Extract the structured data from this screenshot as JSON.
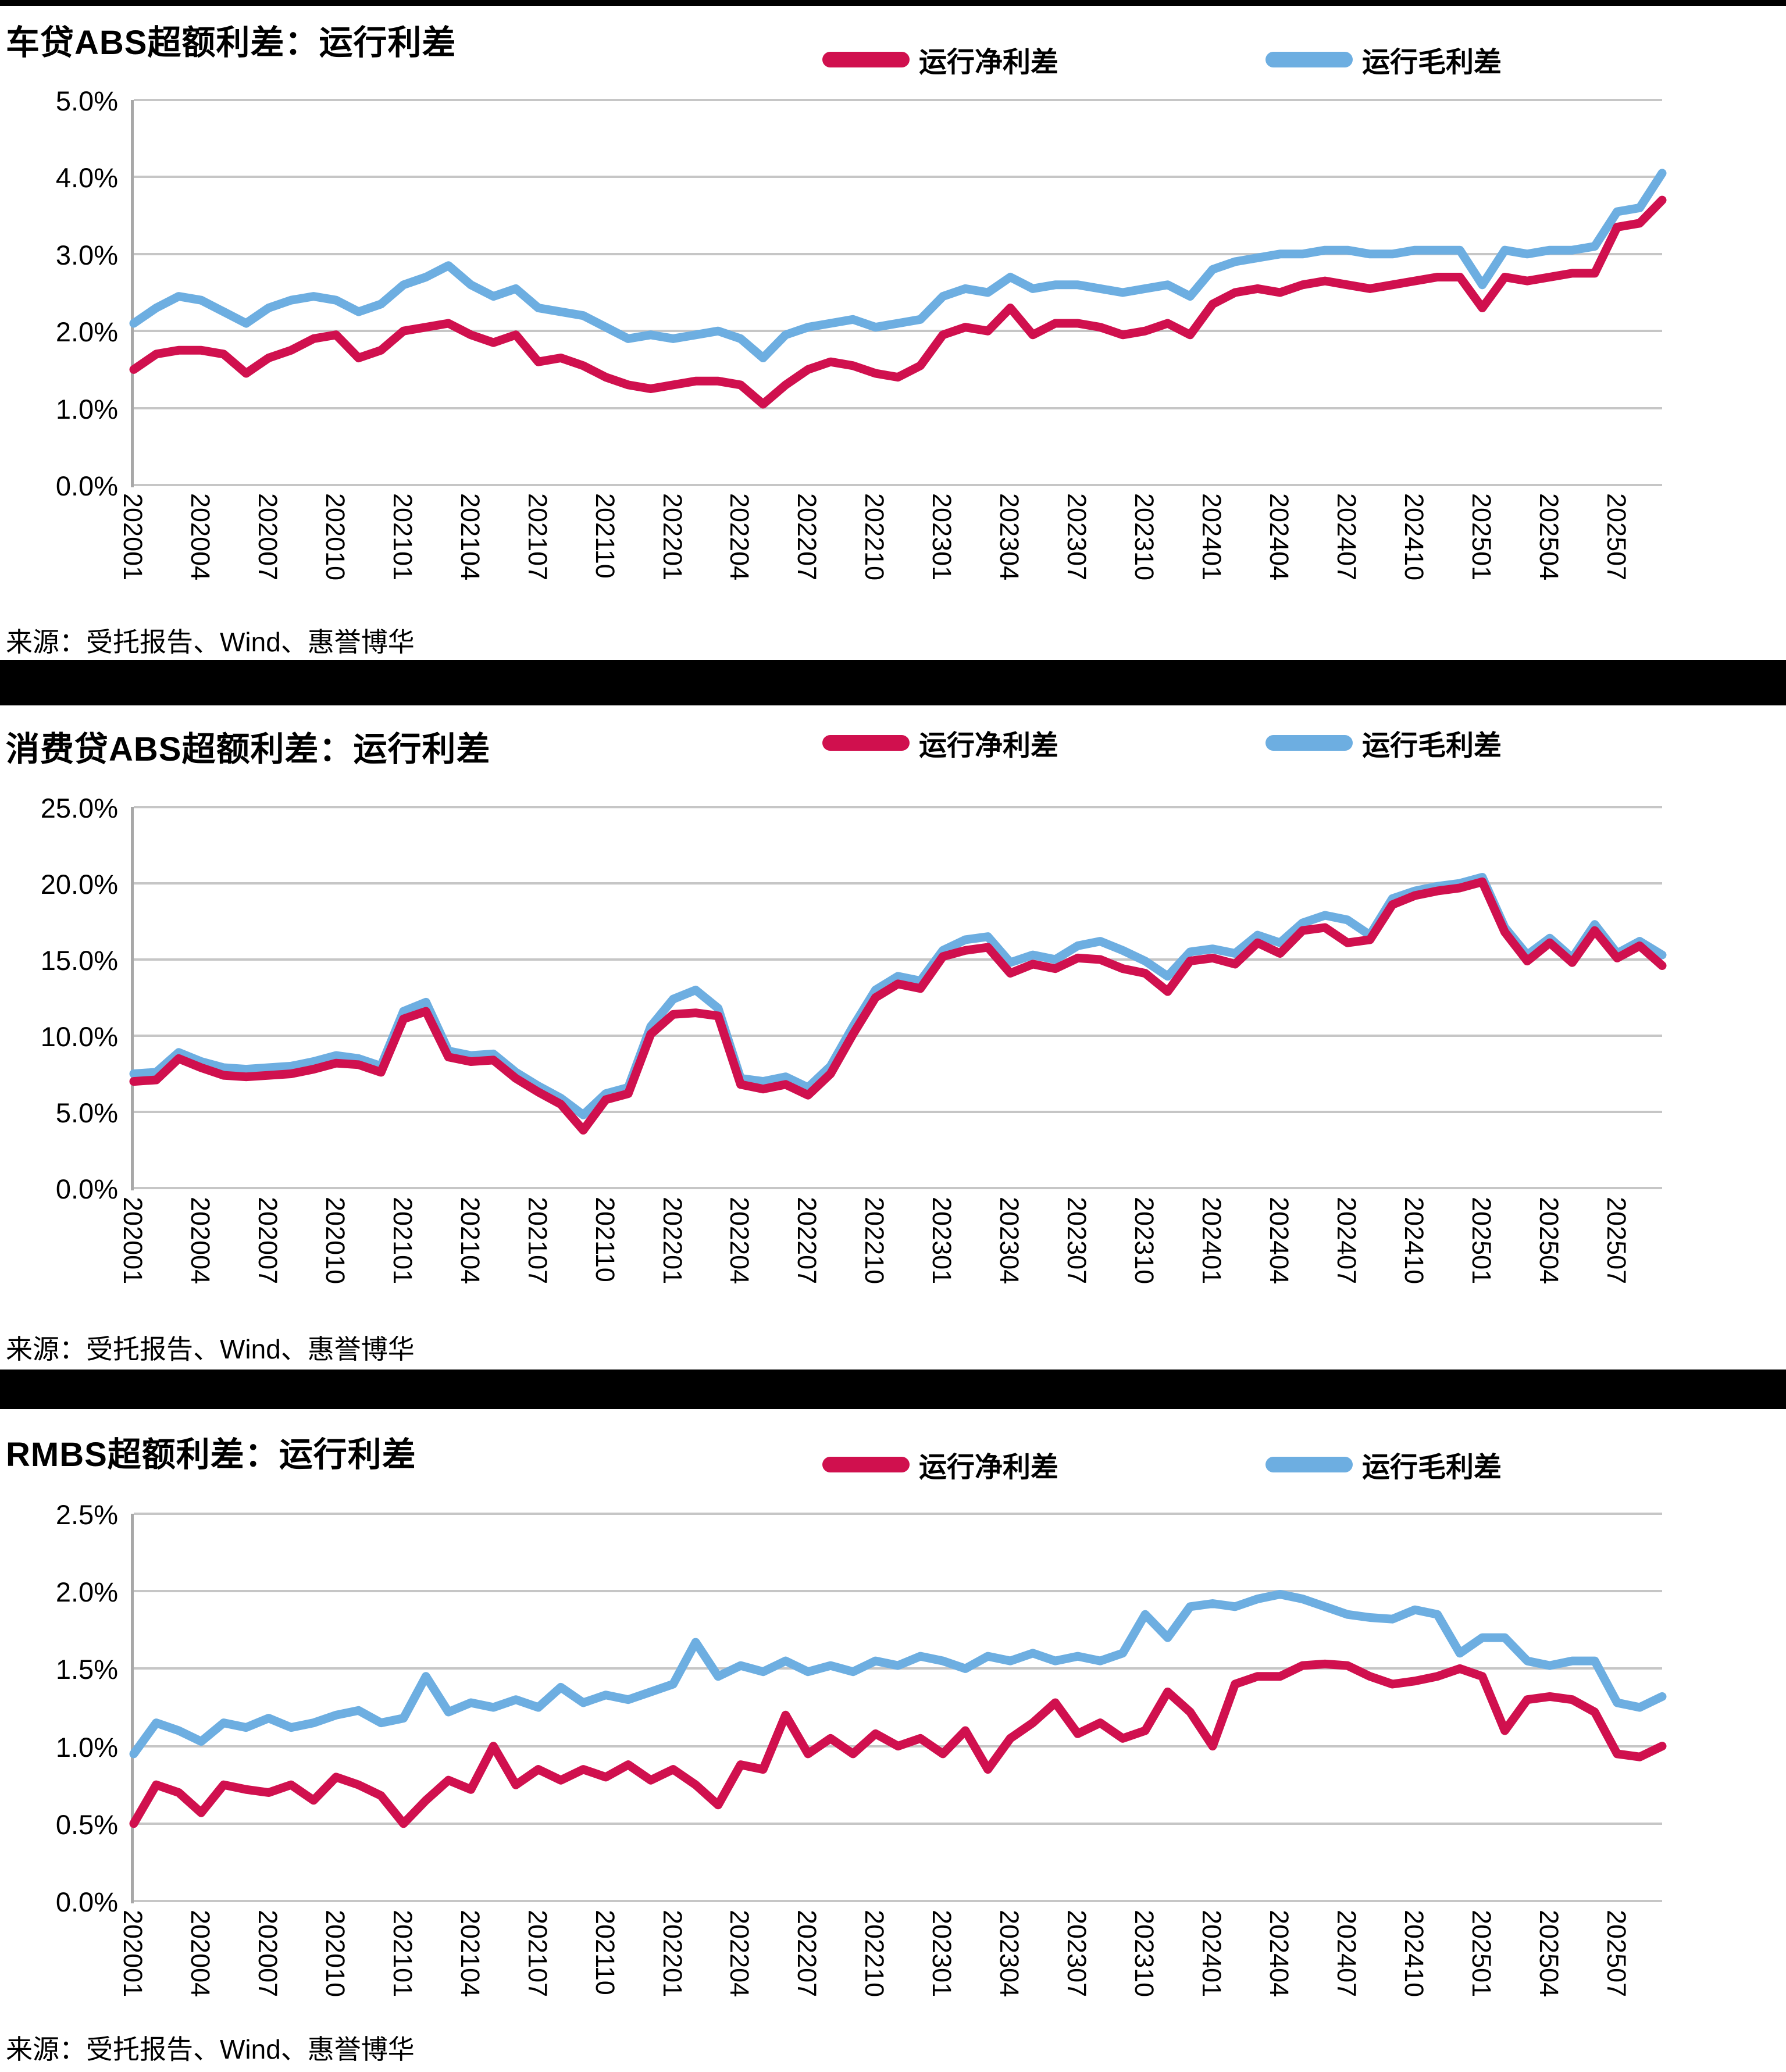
{
  "page": {
    "source_label": "来源：受托报告、Wind、惠誉博华"
  },
  "legend": {
    "net_label": "运行净利差",
    "gross_label": "运行毛利差"
  },
  "colors": {
    "net": "#D0104E",
    "gross": "#6DAEE1",
    "grid": "#C6C6C6",
    "separator": "#000000",
    "background": "#FFFFFF"
  },
  "months": [
    "202001",
    "202002",
    "202003",
    "202004",
    "202005",
    "202006",
    "202007",
    "202008",
    "202009",
    "202010",
    "202011",
    "202012",
    "202101",
    "202102",
    "202103",
    "202104",
    "202105",
    "202106",
    "202107",
    "202108",
    "202109",
    "202110",
    "202111",
    "202112",
    "202201",
    "202202",
    "202203",
    "202204",
    "202205",
    "202206",
    "202207",
    "202208",
    "202209",
    "202210",
    "202211",
    "202212",
    "202301",
    "202302",
    "202303",
    "202304",
    "202305",
    "202306",
    "202307",
    "202308",
    "202309",
    "202310",
    "202311",
    "202312",
    "202401",
    "202402",
    "202403",
    "202404",
    "202405",
    "202406",
    "202407",
    "202408",
    "202409",
    "202410",
    "202411",
    "202412",
    "202501",
    "202502",
    "202503",
    "202504",
    "202505",
    "202506",
    "202507",
    "202508",
    "202509"
  ],
  "x_tick_labels": [
    "202001",
    "202004",
    "202007",
    "202010",
    "202101",
    "202104",
    "202107",
    "202110",
    "202201",
    "202204",
    "202207",
    "202210",
    "202301",
    "202304",
    "202307",
    "202310",
    "202401",
    "202404",
    "202407",
    "202410",
    "202501",
    "202504",
    "202507"
  ],
  "chart_data": [
    {
      "type": "line",
      "title": "车贷ABS超额利差：运行利差",
      "source": "来源：受托报告、Wind、惠誉博华",
      "y_max": 5.0,
      "y_tick_labels": [
        "5.0%",
        "4.0%",
        "3.0%",
        "2.0%",
        "1.0%",
        "0.0%"
      ],
      "grid": "horizontal",
      "legend_position": "top-center",
      "series": [
        {
          "name": "运行毛利差",
          "color_key": "gross",
          "values": [
            2.1,
            2.3,
            2.45,
            2.4,
            2.25,
            2.1,
            2.3,
            2.4,
            2.45,
            2.4,
            2.25,
            2.35,
            2.6,
            2.7,
            2.85,
            2.6,
            2.45,
            2.55,
            2.3,
            2.25,
            2.2,
            2.05,
            1.9,
            1.95,
            1.9,
            1.95,
            2.0,
            1.9,
            1.65,
            1.95,
            2.05,
            2.1,
            2.15,
            2.05,
            2.1,
            2.15,
            2.45,
            2.55,
            2.5,
            2.7,
            2.55,
            2.6,
            2.6,
            2.55,
            2.5,
            2.55,
            2.6,
            2.45,
            2.8,
            2.9,
            2.95,
            3.0,
            3.0,
            3.05,
            3.05,
            3.0,
            3.0,
            3.05,
            3.05,
            3.05,
            2.6,
            3.05,
            3.0,
            3.05,
            3.05,
            3.1,
            3.55,
            3.6,
            4.05
          ]
        },
        {
          "name": "运行净利差",
          "color_key": "net",
          "values": [
            1.5,
            1.7,
            1.75,
            1.75,
            1.7,
            1.45,
            1.65,
            1.75,
            1.9,
            1.95,
            1.65,
            1.75,
            2.0,
            2.05,
            2.1,
            1.95,
            1.85,
            1.95,
            1.6,
            1.65,
            1.55,
            1.4,
            1.3,
            1.25,
            1.3,
            1.35,
            1.35,
            1.3,
            1.05,
            1.3,
            1.5,
            1.6,
            1.55,
            1.45,
            1.4,
            1.55,
            1.95,
            2.05,
            2.0,
            2.3,
            1.95,
            2.1,
            2.1,
            2.05,
            1.95,
            2.0,
            2.1,
            1.95,
            2.35,
            2.5,
            2.55,
            2.5,
            2.6,
            2.65,
            2.6,
            2.55,
            2.6,
            2.65,
            2.7,
            2.7,
            2.3,
            2.7,
            2.65,
            2.7,
            2.75,
            2.75,
            3.35,
            3.4,
            3.7
          ]
        }
      ]
    },
    {
      "type": "line",
      "title": "消费贷ABS超额利差：运行利差",
      "source": "来源：受托报告、Wind、惠誉博华",
      "y_max": 25.0,
      "y_tick_labels": [
        "25.0%",
        "20.0%",
        "15.0%",
        "10.0%",
        "5.0%",
        "0.0%"
      ],
      "grid": "horizontal",
      "legend_position": "top-center",
      "series": [
        {
          "name": "运行毛利差",
          "color_key": "gross",
          "values": [
            7.5,
            7.6,
            8.9,
            8.3,
            7.9,
            7.8,
            7.9,
            8.0,
            8.3,
            8.7,
            8.5,
            8.0,
            11.6,
            12.2,
            9.0,
            8.7,
            8.8,
            7.6,
            6.7,
            5.9,
            4.8,
            6.2,
            6.6,
            10.6,
            12.4,
            13.0,
            11.8,
            7.2,
            7.0,
            7.3,
            6.6,
            8.0,
            10.6,
            13.0,
            13.9,
            13.6,
            15.6,
            16.3,
            16.5,
            14.8,
            15.3,
            15.0,
            15.9,
            16.2,
            15.6,
            14.9,
            13.9,
            15.5,
            15.7,
            15.4,
            16.6,
            16.1,
            17.4,
            17.9,
            17.6,
            16.6,
            19.0,
            19.5,
            19.8,
            20.0,
            20.4,
            17.1,
            15.3,
            16.4,
            15.1,
            17.3,
            15.4,
            16.2,
            15.3
          ]
        },
        {
          "name": "运行净利差",
          "color_key": "net",
          "values": [
            7.0,
            7.1,
            8.5,
            7.9,
            7.4,
            7.3,
            7.4,
            7.5,
            7.8,
            8.2,
            8.1,
            7.6,
            11.1,
            11.6,
            8.6,
            8.3,
            8.4,
            7.2,
            6.3,
            5.5,
            3.8,
            5.8,
            6.2,
            10.1,
            11.4,
            11.5,
            11.3,
            6.8,
            6.5,
            6.8,
            6.1,
            7.5,
            10.1,
            12.5,
            13.4,
            13.1,
            15.2,
            15.6,
            15.8,
            14.1,
            14.7,
            14.4,
            15.1,
            15.0,
            14.4,
            14.1,
            12.9,
            14.9,
            15.1,
            14.7,
            16.1,
            15.4,
            16.9,
            17.1,
            16.1,
            16.3,
            18.6,
            19.2,
            19.5,
            19.7,
            20.1,
            16.8,
            14.9,
            16.1,
            14.8,
            16.9,
            15.1,
            15.9,
            14.6
          ]
        }
      ]
    },
    {
      "type": "line",
      "title": "RMBS超额利差：运行利差",
      "source": "来源：受托报告、Wind、惠誉博华",
      "y_max": 2.5,
      "y_tick_labels": [
        "2.5%",
        "2.0%",
        "1.5%",
        "1.0%",
        "0.5%",
        "0.0%"
      ],
      "grid": "horizontal",
      "legend_position": "top-center",
      "series": [
        {
          "name": "运行毛利差",
          "color_key": "gross",
          "values": [
            0.95,
            1.15,
            1.1,
            1.03,
            1.15,
            1.12,
            1.18,
            1.12,
            1.15,
            1.2,
            1.23,
            1.15,
            1.18,
            1.45,
            1.22,
            1.28,
            1.25,
            1.3,
            1.25,
            1.38,
            1.28,
            1.33,
            1.3,
            1.35,
            1.4,
            1.67,
            1.45,
            1.52,
            1.48,
            1.55,
            1.48,
            1.52,
            1.48,
            1.55,
            1.52,
            1.58,
            1.55,
            1.5,
            1.58,
            1.55,
            1.6,
            1.55,
            1.58,
            1.55,
            1.6,
            1.85,
            1.7,
            1.9,
            1.92,
            1.9,
            1.95,
            1.98,
            1.95,
            1.9,
            1.85,
            1.83,
            1.82,
            1.88,
            1.85,
            1.6,
            1.7,
            1.7,
            1.55,
            1.52,
            1.55,
            1.55,
            1.28,
            1.25,
            1.32
          ]
        },
        {
          "name": "运行净利差",
          "color_key": "net",
          "values": [
            0.5,
            0.75,
            0.7,
            0.57,
            0.75,
            0.72,
            0.7,
            0.75,
            0.65,
            0.8,
            0.75,
            0.68,
            0.5,
            0.65,
            0.78,
            0.72,
            1.0,
            0.75,
            0.85,
            0.78,
            0.85,
            0.8,
            0.88,
            0.78,
            0.85,
            0.75,
            0.62,
            0.88,
            0.85,
            1.2,
            0.95,
            1.05,
            0.95,
            1.08,
            1.0,
            1.05,
            0.95,
            1.1,
            0.85,
            1.05,
            1.15,
            1.28,
            1.08,
            1.15,
            1.05,
            1.1,
            1.35,
            1.22,
            1.0,
            1.4,
            1.45,
            1.45,
            1.52,
            1.53,
            1.52,
            1.45,
            1.4,
            1.42,
            1.45,
            1.5,
            1.45,
            1.1,
            1.3,
            1.32,
            1.3,
            1.22,
            0.95,
            0.93,
            1.0
          ]
        }
      ]
    }
  ]
}
